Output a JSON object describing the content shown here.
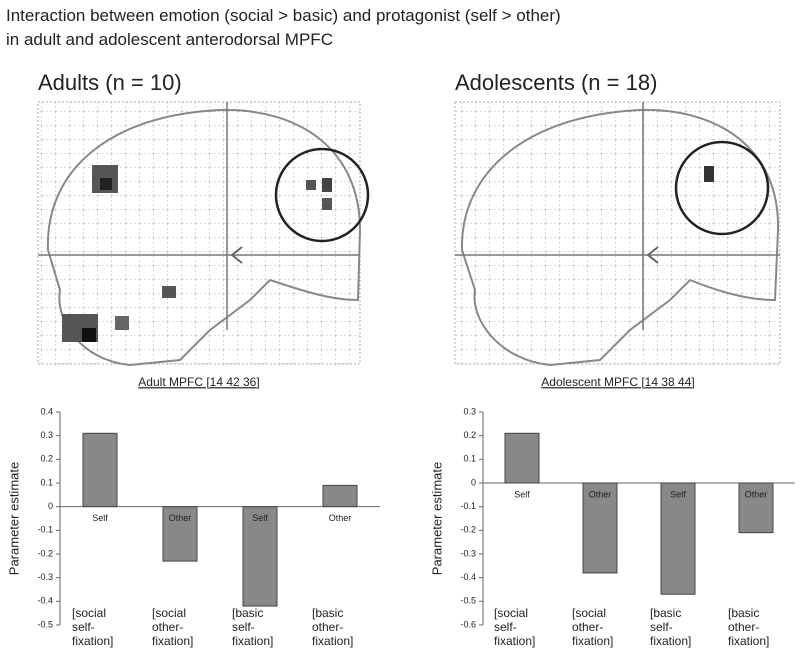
{
  "title_lines": [
    "Interaction between emotion (social > basic) and protagonist (self > other)",
    "in adult and adolescent anterodorsal MPFC"
  ],
  "chart_data": [
    {
      "type": "bar",
      "panel_title": "Adults (n = 10)",
      "region_label": "Adult MPFC [14 42 36]",
      "y_label": "Parameter estimate",
      "categories": [
        "[social\nself-\nfixation]",
        "[social\nother-\nfixation]",
        "[basic\nself-\nfixation]",
        "[basic\nother-\nfixation]"
      ],
      "values": [
        0.31,
        -0.23,
        -0.42,
        0.09
      ],
      "bar_labels": [
        "Self",
        "Other",
        "Self",
        "Other"
      ],
      "color": "#888888",
      "ylim": [
        -0.5,
        0.4
      ],
      "yticks": [
        -0.5,
        -0.4,
        -0.3,
        -0.2,
        -0.1,
        0,
        0.1,
        0.2,
        0.3,
        0.4
      ]
    },
    {
      "type": "bar",
      "panel_title": "Adolescents (n = 18)",
      "region_label": "Adolescent MPFC [14 38 44]",
      "y_label": "Parameter estimate",
      "categories": [
        "[social\nself-\nfixation]",
        "[social\nother-\nfixation]",
        "[basic\nself-\nfixation]",
        "[basic\nother-\nfixation]"
      ],
      "values": [
        0.21,
        -0.38,
        -0.47,
        -0.21
      ],
      "bar_labels": [
        "Self",
        "Other",
        "Self",
        "Other"
      ],
      "color": "#888888",
      "ylim": [
        -0.6,
        0.3
      ],
      "yticks": [
        -0.6,
        -0.5,
        -0.4,
        -0.3,
        -0.2,
        -0.1,
        0,
        0.1,
        0.2,
        0.3
      ]
    }
  ]
}
